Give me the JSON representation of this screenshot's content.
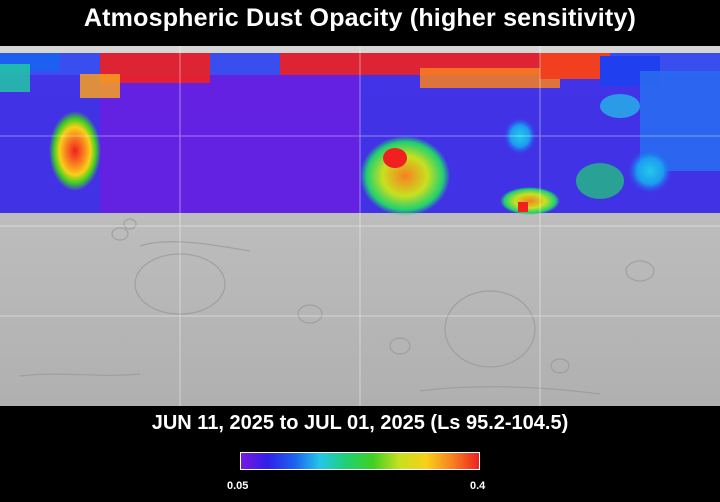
{
  "title": "Atmospheric Dust Opacity (higher sensitivity)",
  "date_range": "JUN 11, 2025 to JUL 01, 2025 (Ls 95.2-104.5)",
  "colorbar": {
    "min_label": "0.05",
    "max_label": "0.4",
    "min_value": 0.05,
    "max_value": 0.4,
    "colors": [
      "#7a18e0",
      "#3020e8",
      "#1d60f0",
      "#22c8e8",
      "#20d070",
      "#40d020",
      "#c8e020",
      "#f8d018",
      "#f88020",
      "#f02020"
    ]
  },
  "map_colors": {
    "land": "#bdbdbd",
    "no_data_band": "#d0d0d0"
  }
}
